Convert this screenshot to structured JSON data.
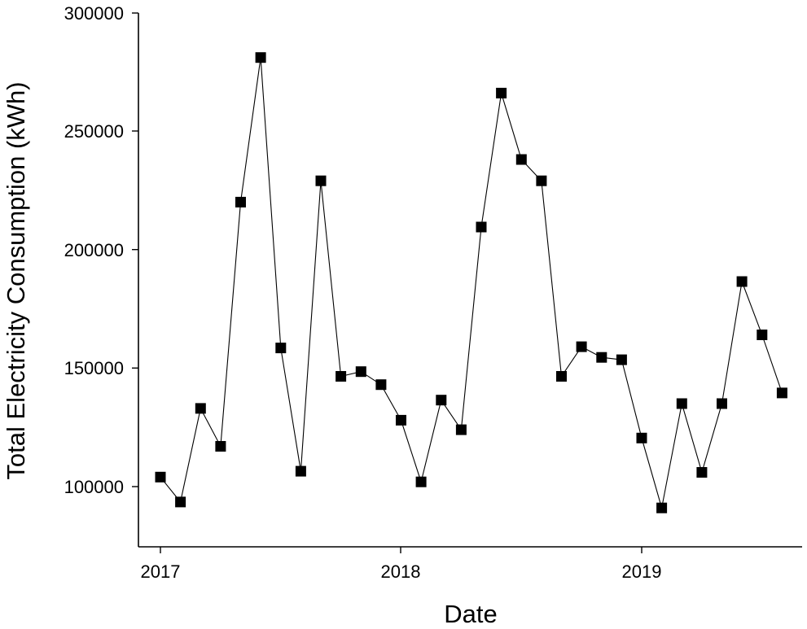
{
  "chart_data": {
    "type": "line",
    "title": "",
    "xlabel": "Date",
    "ylabel": "Total Electricity Consumption (kWh)",
    "x_ticks": [
      "2017",
      "2018",
      "2019"
    ],
    "y_ticks": [
      "100000",
      "150000",
      "200000",
      "250000",
      "300000"
    ],
    "ylim": [
      78000,
      300000
    ],
    "xlim": [
      "2016-12",
      "2019-09"
    ],
    "grid": false,
    "marker": "square",
    "series": [
      {
        "x": [
          "2017-01",
          "2017-02",
          "2017-03",
          "2017-04",
          "2017-05",
          "2017-06",
          "2017-07",
          "2017-08",
          "2017-09",
          "2017-10",
          "2017-11",
          "2017-12",
          "2018-01",
          "2018-02",
          "2018-03",
          "2018-04",
          "2018-05",
          "2018-06",
          "2018-07",
          "2018-08",
          "2018-09",
          "2018-10",
          "2018-11",
          "2018-12",
          "2019-01",
          "2019-02",
          "2019-03",
          "2019-04",
          "2019-05",
          "2019-06",
          "2019-07",
          "2019-08"
        ],
        "values": [
          104000,
          93500,
          133000,
          117000,
          220000,
          281000,
          158500,
          106500,
          229000,
          146500,
          148500,
          143000,
          128000,
          102000,
          136500,
          124000,
          209500,
          266000,
          238000,
          229000,
          146500,
          159000,
          154500,
          153500,
          120500,
          91000,
          135000,
          106000,
          135000,
          186500,
          164000,
          139500
        ]
      }
    ]
  }
}
